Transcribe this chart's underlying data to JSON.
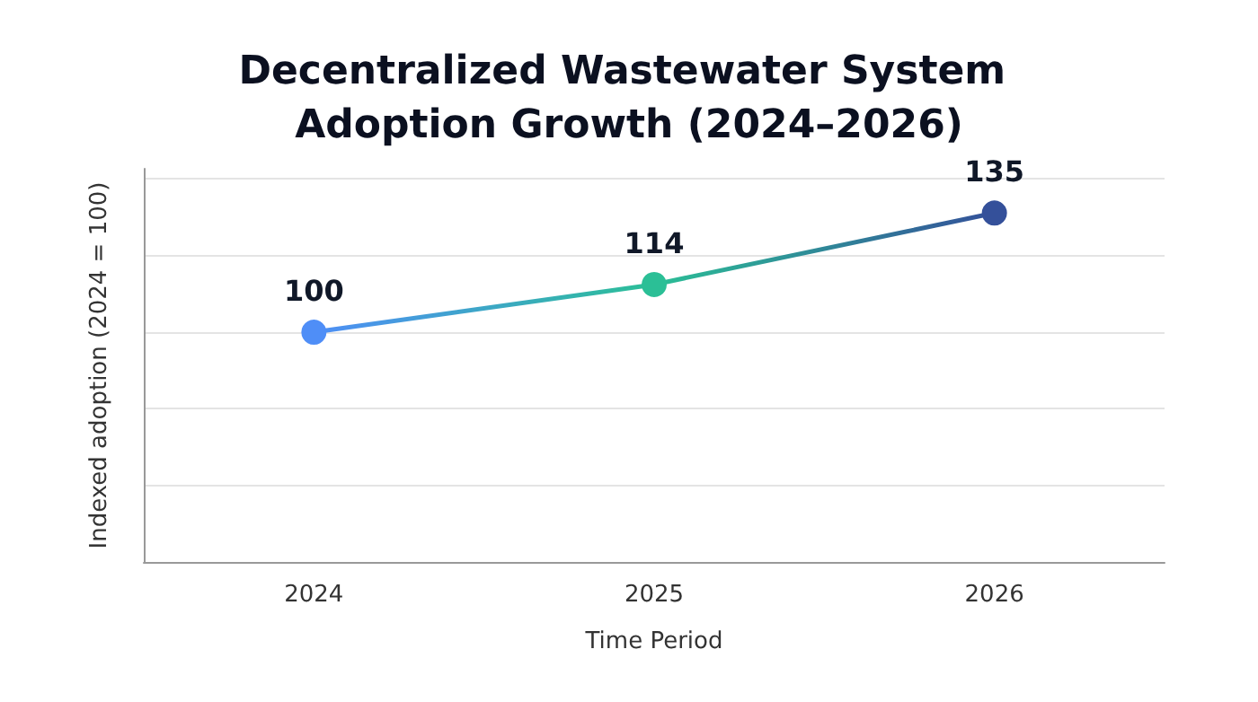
{
  "chart_data": {
    "type": "line",
    "title": "Decentralized Wastewater System Adoption Growth (2024–2026)",
    "xlabel": "Time Period",
    "ylabel": "Indexed adoption (2024 = 100)",
    "categories": [
      "2024",
      "2025",
      "2026"
    ],
    "series": [
      {
        "colors": [
          "#4f8ef7",
          "#2bbf96",
          "#34509a"
        ],
        "values": [
          100,
          114,
          135
        ]
      }
    ],
    "ylim": [
      32.5,
      148
    ],
    "yticks": [
      {
        "value": 32.5,
        "label": null
      },
      {
        "value": 55,
        "label": null
      },
      {
        "value": 77.5,
        "label": null
      },
      {
        "value": 100,
        "label": null
      },
      {
        "value": 122.5,
        "label": null
      },
      {
        "value": 145,
        "label": null
      }
    ],
    "tick_labels": "x",
    "grid": "y",
    "data_labels": true,
    "marker": "circle",
    "line_style": "solid"
  }
}
